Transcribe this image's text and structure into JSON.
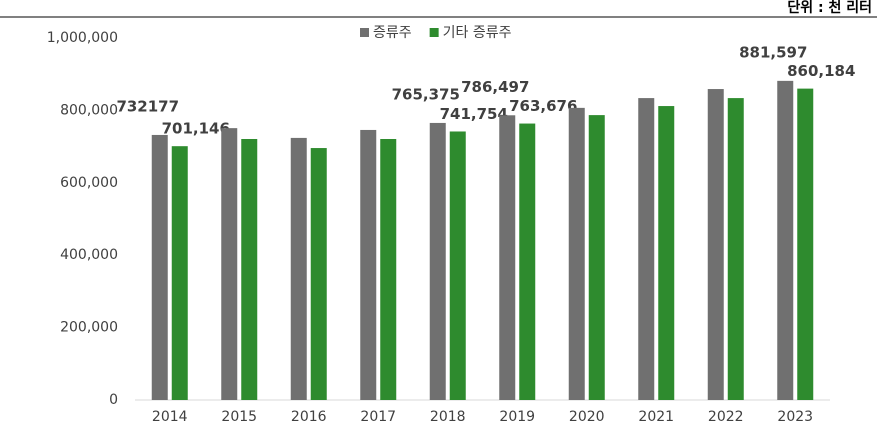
{
  "chart_data": {
    "type": "bar",
    "unit": "단위 : 천 리터",
    "categories": [
      "2014",
      "2015",
      "2016",
      "2017",
      "2018",
      "2019",
      "2020",
      "2021",
      "2022",
      "2023"
    ],
    "series": [
      {
        "name": "증류주",
        "color": "#707070",
        "values": [
          732177,
          751000,
          724000,
          746000,
          765375,
          786497,
          807000,
          834000,
          859000,
          881597
        ],
        "value_labels": [
          "732177",
          null,
          null,
          null,
          "765,375",
          "786,497",
          null,
          null,
          null,
          "881,597"
        ]
      },
      {
        "name": "기타 증류주",
        "color": "#2e8b2e",
        "values": [
          701146,
          721000,
          696000,
          721000,
          741754,
          763676,
          787000,
          812000,
          834000,
          860184
        ],
        "value_labels": [
          "701,146",
          null,
          null,
          null,
          "741,754",
          "763,676",
          null,
          null,
          null,
          "860,184"
        ]
      }
    ],
    "ylim": [
      0,
      1000000
    ],
    "yticks": [
      0,
      {
        "value": 200000,
        "label": "200,000"
      },
      {
        "value": 400000,
        "label": "400,000"
      },
      {
        "value": 600000,
        "label": "600,000"
      },
      {
        "value": 800000,
        "label": "800,000"
      },
      {
        "value": 1000000,
        "label": "1,000,000"
      }
    ],
    "legend": "top"
  }
}
